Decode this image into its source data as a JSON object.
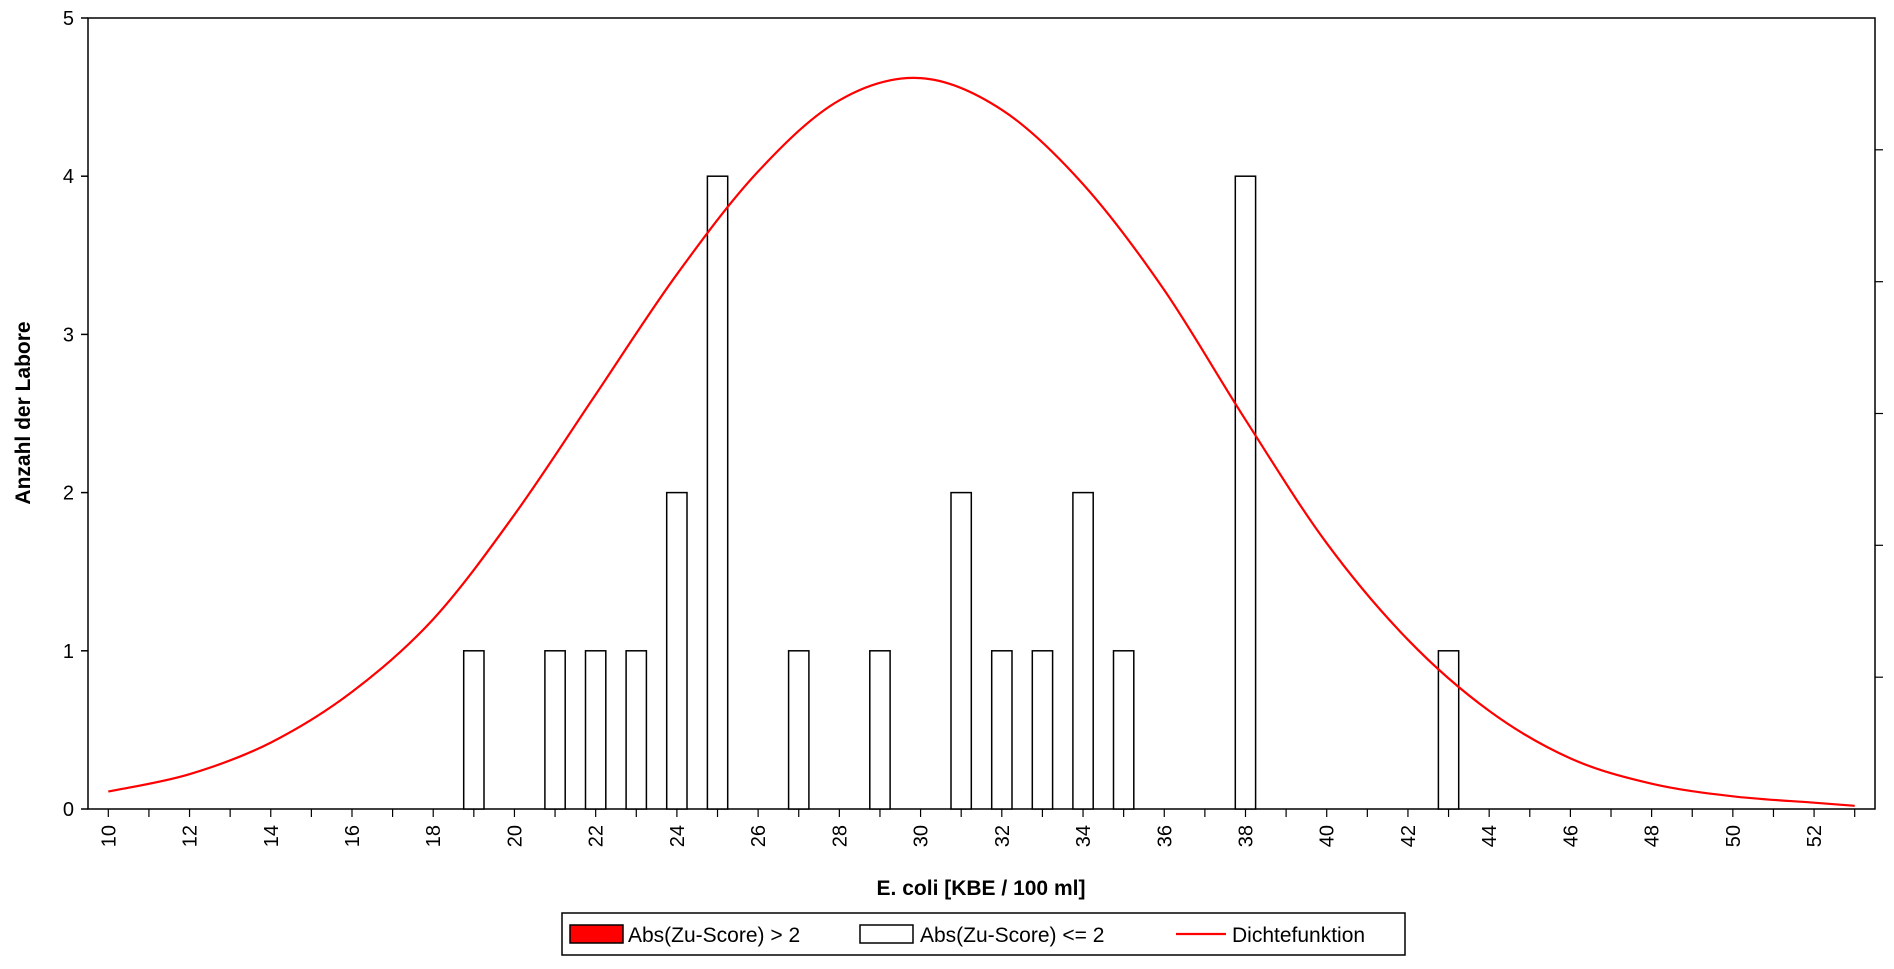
{
  "chart_data": {
    "type": "bar",
    "xlabel": "E. coli [KBE / 100 ml]",
    "ylabel": "Anzahl der Labore",
    "xlim": [
      9.5,
      53.5
    ],
    "ylim": [
      0,
      5
    ],
    "x_ticks": [
      10,
      12,
      14,
      16,
      18,
      20,
      22,
      24,
      26,
      28,
      30,
      32,
      34,
      36,
      38,
      40,
      42,
      44,
      46,
      48,
      50,
      52
    ],
    "x_tick_labels": [
      "10",
      "12",
      "14",
      "16",
      "18",
      "20",
      "22",
      "24",
      "26",
      "28",
      "30",
      "32",
      "34",
      "36",
      "38",
      "40",
      "42",
      "44",
      "46",
      "48",
      "50",
      "52"
    ],
    "y_ticks": [
      0,
      1,
      2,
      3,
      4,
      5
    ],
    "y_tick_labels": [
      "0",
      "1",
      "2",
      "3",
      "4",
      "5"
    ],
    "grid": false,
    "legend_position": "bottom-center",
    "series": [
      {
        "name": "Abs(Zu-Score) > 2",
        "kind": "bar",
        "color": "#ff0000",
        "x": [],
        "values": []
      },
      {
        "name": "Abs(Zu-Score) <= 2",
        "kind": "bar",
        "color": "#ffffff",
        "x": [
          19,
          21,
          22,
          23,
          24,
          25,
          27,
          29,
          31,
          32,
          33,
          34,
          35,
          38,
          43
        ],
        "values": [
          1,
          1,
          1,
          1,
          2,
          4,
          1,
          1,
          2,
          1,
          1,
          2,
          1,
          4,
          1
        ]
      },
      {
        "name": "Dichtefunktion",
        "kind": "line",
        "color": "#ff0000",
        "x": [
          10,
          12,
          14,
          16,
          18,
          20,
          22,
          24,
          26,
          28,
          30,
          32,
          34,
          36,
          38,
          40,
          42,
          44,
          46,
          48,
          50,
          52,
          53
        ],
        "values": [
          0.11,
          0.22,
          0.42,
          0.74,
          1.2,
          1.86,
          2.62,
          3.38,
          4.03,
          4.48,
          4.62,
          4.42,
          3.95,
          3.28,
          2.46,
          1.68,
          1.07,
          0.62,
          0.32,
          0.16,
          0.08,
          0.04,
          0.02
        ]
      }
    ]
  }
}
